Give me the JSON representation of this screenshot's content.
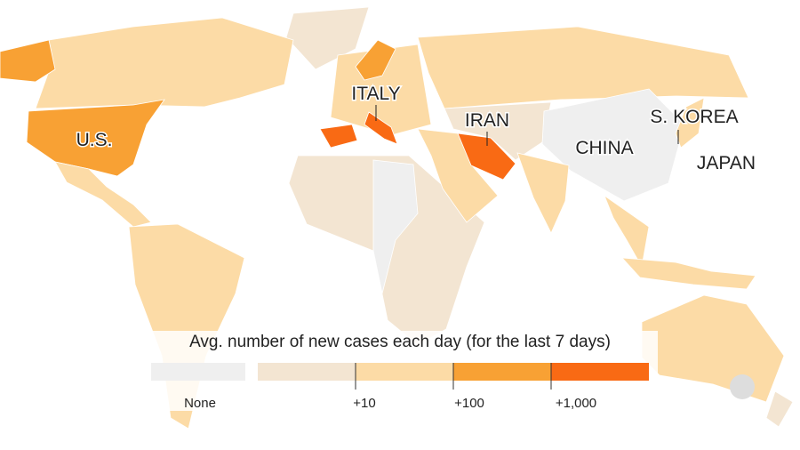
{
  "labels": [
    "U.S.",
    "ITALY",
    "IRAN",
    "CHINA",
    "S. KOREA",
    "JAPAN"
  ],
  "legend": {
    "title": "Avg. number of new cases each day (for the last 7 days)",
    "items": [
      "None",
      "+10",
      "+100",
      "+1,000"
    ]
  }
}
